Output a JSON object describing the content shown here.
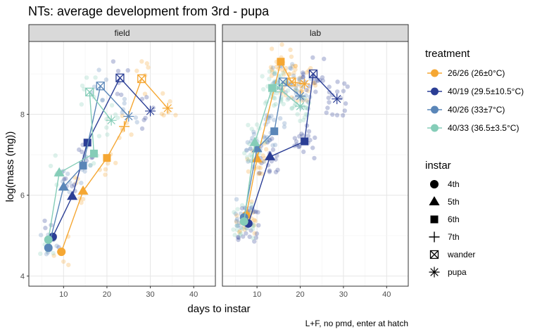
{
  "chart_data": {
    "type": "scatter",
    "title": "NTs: average development from 3rd - pupa",
    "xlabel": "days to instar",
    "ylabel": "log(mass (mg))",
    "caption": "L+F, no pmd, enter at hatch",
    "xlim": [
      2,
      45
    ],
    "ylim": [
      3.75,
      9.8
    ],
    "x_ticks": [
      10,
      20,
      30,
      40
    ],
    "y_ticks": [
      4,
      6,
      8
    ],
    "grid": true,
    "legend_placement": "right",
    "panels": [
      {
        "name": "field",
        "series": [
          {
            "treatment": "26/26 (26±0°C)",
            "color": "#F5A733",
            "means": [
              {
                "instar": "4th",
                "x": 9.5,
                "y": 4.6
              },
              {
                "instar": "5th",
                "x": 14.5,
                "y": 6.1
              },
              {
                "instar": "6th",
                "x": 20,
                "y": 6.92
              },
              {
                "instar": "7th",
                "x": 24,
                "y": 7.7
              },
              {
                "instar": "wander",
                "x": 28,
                "y": 8.88
              },
              {
                "instar": "pupa",
                "x": 34,
                "y": 8.15
              }
            ]
          },
          {
            "treatment": "40/19 (29.5±10.5°C)",
            "color": "#2B3E95",
            "means": [
              {
                "instar": "4th",
                "x": 7.5,
                "y": 4.97
              },
              {
                "instar": "5th",
                "x": 12,
                "y": 5.97
              },
              {
                "instar": "6th",
                "x": 15.5,
                "y": 7.3
              },
              {
                "instar": "wander",
                "x": 23,
                "y": 8.9
              },
              {
                "instar": "pupa",
                "x": 30,
                "y": 8.08
              }
            ]
          },
          {
            "treatment": "40/26 (33±7°C)",
            "color": "#5A86B8",
            "means": [
              {
                "instar": "4th",
                "x": 6.5,
                "y": 4.7
              },
              {
                "instar": "5th",
                "x": 10,
                "y": 6.2
              },
              {
                "instar": "6th",
                "x": 14.5,
                "y": 6.73
              },
              {
                "instar": "wander",
                "x": 18.5,
                "y": 8.7
              },
              {
                "instar": "pupa",
                "x": 25,
                "y": 7.95
              }
            ]
          },
          {
            "treatment": "40/33 (36.5±3.5°C)",
            "color": "#85CDB8",
            "means": [
              {
                "instar": "4th",
                "x": 6.5,
                "y": 4.9
              },
              {
                "instar": "5th",
                "x": 9,
                "y": 6.55
              },
              {
                "instar": "6th",
                "x": 17,
                "y": 7.03
              },
              {
                "instar": "wander",
                "x": 16,
                "y": 8.55
              },
              {
                "instar": "pupa",
                "x": 21,
                "y": 7.85
              }
            ]
          }
        ]
      },
      {
        "name": "lab",
        "series": [
          {
            "treatment": "26/26 (26±0°C)",
            "color": "#F5A733",
            "means": [
              {
                "instar": "4th",
                "x": 7.5,
                "y": 5.5
              },
              {
                "instar": "5th",
                "x": 10,
                "y": 6.9
              },
              {
                "instar": "6th",
                "x": 15.5,
                "y": 9.3
              },
              {
                "instar": "wander",
                "x": 18,
                "y": 8.8
              },
              {
                "instar": "pupa",
                "x": 21,
                "y": 8.75
              }
            ]
          },
          {
            "treatment": "40/19 (29.5±10.5°C)",
            "color": "#2B3E95",
            "means": [
              {
                "instar": "4th",
                "x": 8,
                "y": 5.3
              },
              {
                "instar": "5th",
                "x": 13,
                "y": 6.95
              },
              {
                "instar": "6th",
                "x": 21,
                "y": 7.33
              },
              {
                "instar": "wander",
                "x": 23,
                "y": 9.0
              },
              {
                "instar": "pupa",
                "x": 28.5,
                "y": 8.38
              }
            ]
          },
          {
            "treatment": "40/26 (33±7°C)",
            "color": "#5A86B8",
            "means": [
              {
                "instar": "4th",
                "x": 7,
                "y": 5.45
              },
              {
                "instar": "5th",
                "x": 10,
                "y": 7.15
              },
              {
                "instar": "6th",
                "x": 14,
                "y": 7.58
              },
              {
                "instar": "wander",
                "x": 16,
                "y": 8.8
              },
              {
                "instar": "pupa",
                "x": 20,
                "y": 8.45
              }
            ]
          },
          {
            "treatment": "40/33 (36.5±3.5°C)",
            "color": "#85CDB8",
            "means": [
              {
                "instar": "4th",
                "x": 7,
                "y": 5.35
              },
              {
                "instar": "5th",
                "x": 9.5,
                "y": 7.3
              },
              {
                "instar": "6th",
                "x": 13.5,
                "y": 8.65
              },
              {
                "instar": "wander",
                "x": 15,
                "y": 8.65
              },
              {
                "instar": "pupa",
                "x": 20,
                "y": 8.2
              }
            ]
          }
        ]
      }
    ],
    "legend_treatment": {
      "title": "treatment",
      "items": [
        {
          "label": "26/26 (26±0°C)",
          "color": "#F5A733"
        },
        {
          "label": "40/19 (29.5±10.5°C)",
          "color": "#2B3E95"
        },
        {
          "label": "40/26 (33±7°C)",
          "color": "#5A86B8"
        },
        {
          "label": "40/33 (36.5±3.5°C)",
          "color": "#85CDB8"
        }
      ]
    },
    "legend_instar": {
      "title": "instar",
      "items": [
        {
          "label": "4th",
          "shape": "circle"
        },
        {
          "label": "5th",
          "shape": "triangle"
        },
        {
          "label": "6th",
          "shape": "square"
        },
        {
          "label": "7th",
          "shape": "plus"
        },
        {
          "label": "wander",
          "shape": "boxcross"
        },
        {
          "label": "pupa",
          "shape": "asterisk"
        }
      ]
    }
  }
}
